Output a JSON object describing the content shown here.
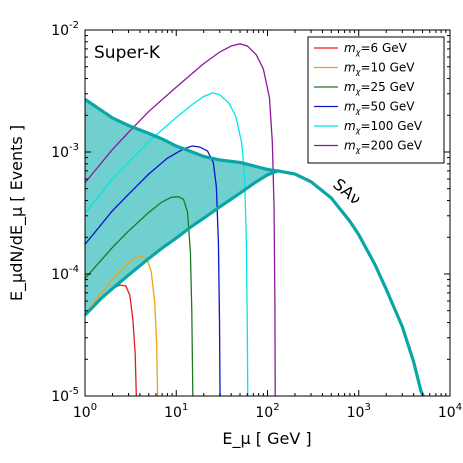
{
  "chart_data": {
    "type": "line",
    "panel_label": "Super-K",
    "xlabel": "E_μ [ GeV ]",
    "ylabel": "E_μdN/dE_μ [ Events ]",
    "x_scale": "log",
    "y_scale": "log",
    "xlim": [
      1,
      10000
    ],
    "ylim": [
      1e-05,
      0.01
    ],
    "x_ticks": [
      {
        "value": 1,
        "base": "10",
        "exp": "0"
      },
      {
        "value": 10,
        "base": "10",
        "exp": "1"
      },
      {
        "value": 100,
        "base": "10",
        "exp": "2"
      },
      {
        "value": 1000,
        "base": "10",
        "exp": "3"
      },
      {
        "value": 10000,
        "base": "10",
        "exp": "4"
      }
    ],
    "y_ticks": [
      {
        "value": 1e-05,
        "base": "10",
        "exp": "-5"
      },
      {
        "value": 0.0001,
        "base": "10",
        "exp": "-4"
      },
      {
        "value": 0.001,
        "base": "10",
        "exp": "-3"
      },
      {
        "value": 0.01,
        "base": "10",
        "exp": "-2"
      }
    ],
    "legend_position": "top-right",
    "series": [
      {
        "name": "m_χ=6 GeV",
        "label_prefix": "m",
        "label_sub": "χ",
        "label_suffix": "=6 GeV",
        "color": "#e41a1c",
        "points": [
          [
            1.0,
            4.55e-05
          ],
          [
            1.3,
            5.6e-05
          ],
          [
            1.6,
            6.6e-05
          ],
          [
            2.0,
            7.6e-05
          ],
          [
            2.4,
            8.1e-05
          ],
          [
            2.8,
            8e-05
          ],
          [
            3.1,
            6.7e-05
          ],
          [
            3.35,
            4.2e-05
          ],
          [
            3.55,
            2.2e-05
          ],
          [
            3.65,
            1e-05
          ]
        ]
      },
      {
        "name": "m_χ=10 GeV",
        "label_prefix": "m",
        "label_sub": "χ",
        "label_suffix": "=10 GeV",
        "color": "#f0a30a",
        "points": [
          [
            1.0,
            4.6e-05
          ],
          [
            1.4,
            6.5e-05
          ],
          [
            2.0,
            9.1e-05
          ],
          [
            2.8,
            0.000118
          ],
          [
            3.5,
            0.000135
          ],
          [
            4.1,
            0.00014
          ],
          [
            4.8,
            0.000132
          ],
          [
            5.3,
            0.000106
          ],
          [
            5.8,
            6e-05
          ],
          [
            6.1,
            2.7e-05
          ],
          [
            6.25,
            1e-05
          ]
        ]
      },
      {
        "name": "m_χ=25 GeV",
        "label_prefix": "m",
        "label_sub": "χ",
        "label_suffix": "=25 GeV",
        "color": "#1e7a1e",
        "points": [
          [
            1.0,
            9.2e-05
          ],
          [
            2.0,
            0.000165
          ],
          [
            3.0,
            0.000225
          ],
          [
            5.0,
            0.00032
          ],
          [
            7.0,
            0.00039
          ],
          [
            8.8,
            0.000425
          ],
          [
            10.5,
            0.00043
          ],
          [
            12.0,
            0.00041
          ],
          [
            13.3,
            0.00032
          ],
          [
            14.3,
            0.00015
          ],
          [
            14.8,
            5e-05
          ],
          [
            15.2,
            1e-05
          ]
        ]
      },
      {
        "name": "m_χ=50 GeV",
        "label_prefix": "m",
        "label_sub": "χ",
        "label_suffix": "=50 GeV",
        "color": "#0a14c8",
        "points": [
          [
            1.0,
            0.000175
          ],
          [
            2.0,
            0.00033
          ],
          [
            3.0,
            0.00045
          ],
          [
            5.0,
            0.00066
          ],
          [
            8.0,
            0.00089
          ],
          [
            12.0,
            0.00106
          ],
          [
            15.0,
            0.00112
          ],
          [
            18.0,
            0.0011
          ],
          [
            22.0,
            0.00102
          ],
          [
            25.5,
            0.00082
          ],
          [
            27.5,
            0.00052
          ],
          [
            29.0,
            0.00018
          ],
          [
            29.8,
            4e-05
          ],
          [
            30.2,
            1e-05
          ]
        ]
      },
      {
        "name": "m_χ=100 GeV",
        "label_prefix": "m",
        "label_sub": "χ",
        "label_suffix": "=100 GeV",
        "color": "#00e5e5",
        "points": [
          [
            1.0,
            0.000315
          ],
          [
            2.0,
            0.0006
          ],
          [
            3.0,
            0.00082
          ],
          [
            5.0,
            0.00122
          ],
          [
            10.0,
            0.00192
          ],
          [
            15.0,
            0.00245
          ],
          [
            20.0,
            0.00285
          ],
          [
            25.0,
            0.00305
          ],
          [
            30.0,
            0.00295
          ],
          [
            38.0,
            0.0025
          ],
          [
            45.0,
            0.00195
          ],
          [
            52.0,
            0.0012
          ],
          [
            56.0,
            0.00065
          ],
          [
            58.5,
            0.0002
          ],
          [
            60.0,
            4e-05
          ],
          [
            60.8,
            1e-05
          ]
        ]
      },
      {
        "name": "m_χ=200 GeV",
        "label_prefix": "m",
        "label_sub": "χ",
        "label_suffix": "=200 GeV",
        "color": "#8b1a9a",
        "points": [
          [
            1.0,
            0.00056
          ],
          [
            2.0,
            0.00105
          ],
          [
            3.0,
            0.00145
          ],
          [
            5.0,
            0.00215
          ],
          [
            10.0,
            0.0034
          ],
          [
            20.0,
            0.0053
          ],
          [
            30.0,
            0.0066
          ],
          [
            40.0,
            0.0074
          ],
          [
            50.0,
            0.0077
          ],
          [
            60.0,
            0.0074
          ],
          [
            75.0,
            0.0063
          ],
          [
            90.0,
            0.0048
          ],
          [
            105.0,
            0.0028
          ],
          [
            113.0,
            0.0012
          ],
          [
            118.0,
            0.00035
          ],
          [
            120.5,
            6e-05
          ],
          [
            121.5,
            1e-05
          ]
        ]
      }
    ],
    "band": {
      "label": "SAν",
      "color": "#0aa6a6",
      "fill": "#68cccc",
      "upper": [
        [
          1.0,
          0.0027
        ],
        [
          1.5,
          0.0022
        ],
        [
          2.0,
          0.0019
        ],
        [
          3.0,
          0.00165
        ],
        [
          5.0,
          0.00142
        ],
        [
          7.0,
          0.00128
        ],
        [
          10.0,
          0.00112
        ],
        [
          15.0,
          0.001
        ],
        [
          20.0,
          0.00092
        ],
        [
          30.0,
          0.00086
        ],
        [
          50.0,
          0.00082
        ],
        [
          70.0,
          0.00077
        ],
        [
          100.0,
          0.00072
        ],
        [
          130.0,
          0.0007
        ]
      ],
      "lower": [
        [
          1.0,
          4.6e-05
        ],
        [
          1.5,
          6.3e-05
        ],
        [
          2.0,
          7.6e-05
        ],
        [
          3.0,
          9.8e-05
        ],
        [
          5.0,
          0.000134
        ],
        [
          7.0,
          0.000163
        ],
        [
          10.0,
          0.000197
        ],
        [
          15.0,
          0.000248
        ],
        [
          20.0,
          0.000287
        ],
        [
          30.0,
          0.000355
        ],
        [
          50.0,
          0.00046
        ],
        [
          70.0,
          0.00055
        ],
        [
          100.0,
          0.00065
        ],
        [
          130.0,
          0.0007
        ]
      ],
      "tail": [
        [
          130.0,
          0.0007
        ],
        [
          200.0,
          0.00066
        ],
        [
          300.0,
          0.00057
        ],
        [
          500.0,
          0.00042
        ],
        [
          800.0,
          0.00027
        ],
        [
          1000.0,
          0.00021
        ],
        [
          1500.0,
          0.00012
        ],
        [
          2000.0,
          7.5e-05
        ],
        [
          3000.0,
          3.7e-05
        ],
        [
          4000.0,
          1.9e-05
        ],
        [
          4800.0,
          1.1e-05
        ],
        [
          5100.0,
          1e-05
        ]
      ]
    }
  }
}
